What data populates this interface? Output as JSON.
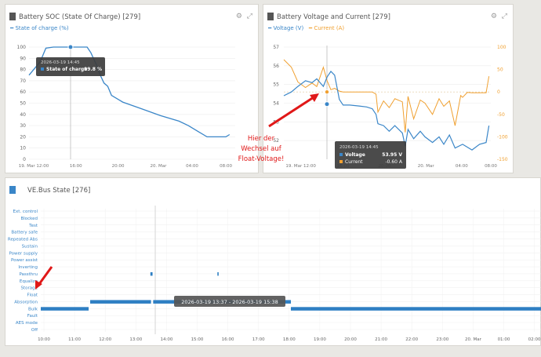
{
  "soc_panel": {
    "title": "Battery SOC (State Of Charge) [279]",
    "legend": "State of charge (%)",
    "tooltip": {
      "time": "2026-03-19 14:45",
      "label": "State of charge",
      "value": "99.8 %"
    }
  },
  "vc_panel": {
    "title": "Battery Voltage and Current [279]",
    "legend_voltage": "Voltage (V)",
    "legend_current": "Current (A)",
    "tooltip": {
      "time": "2026-03-19 14:45",
      "voltage_label": "Voltage",
      "voltage_value": "53.95 V",
      "current_label": "Current",
      "current_value": "-0.60 A"
    },
    "annotation": [
      "Hier der",
      "Wechsel auf",
      "Float-Voltage!"
    ]
  },
  "vebus_panel": {
    "title": "VE.Bus State [276]",
    "tooltip": "2026-03-19 13:37 - 2026-03-19 15:38"
  },
  "colors": {
    "blue": "#3a86c8",
    "orange": "#f0a030",
    "red": "#e01818",
    "bar": "#2e7fc3"
  },
  "chart_data": [
    {
      "type": "line",
      "title": "Battery SOC (State Of Charge) [279]",
      "series": [
        {
          "name": "State of charge (%)",
          "values": [
            [
              0,
              75
            ],
            [
              1.2,
              87
            ],
            [
              1.8,
              99
            ],
            [
              2.6,
              100
            ],
            [
              6.2,
              100
            ],
            [
              6.6,
              95
            ],
            [
              7.2,
              84
            ],
            [
              7.6,
              75
            ],
            [
              8.0,
              68
            ],
            [
              8.4,
              65
            ],
            [
              8.8,
              57
            ],
            [
              10,
              51
            ],
            [
              12,
              45
            ],
            [
              14,
              39
            ],
            [
              16,
              34
            ],
            [
              17,
              30
            ],
            [
              18,
              25
            ],
            [
              19,
              20
            ],
            [
              20,
              20
            ],
            [
              21,
              20
            ],
            [
              21.4,
              22
            ]
          ]
        }
      ],
      "x_tick_labels": [
        "19. Mar 12:00",
        "16:00",
        "20:00",
        "20. Mar",
        "04:00",
        "08:00"
      ],
      "y_tick_labels": [
        "0",
        "10",
        "20",
        "30",
        "40",
        "50",
        "60",
        "70",
        "80",
        "90",
        "100"
      ],
      "ylim": [
        0,
        100
      ]
    },
    {
      "type": "line",
      "title": "Battery Voltage and Current [279]",
      "series": [
        {
          "name": "Voltage (V)",
          "axis": "left",
          "values": [
            [
              0,
              54.4
            ],
            [
              0.8,
              54.6
            ],
            [
              1.5,
              54.9
            ],
            [
              2.3,
              55.2
            ],
            [
              3.0,
              55.1
            ],
            [
              3.5,
              55.3
            ],
            [
              4.2,
              54.9
            ],
            [
              4.6,
              55.4
            ],
            [
              5.0,
              55.7
            ],
            [
              5.4,
              55.5
            ],
            [
              5.9,
              54.2
            ],
            [
              6.3,
              53.9
            ],
            [
              7,
              53.9
            ],
            [
              8,
              53.85
            ],
            [
              8.8,
              53.8
            ],
            [
              9.4,
              53.7
            ],
            [
              9.8,
              53.4
            ],
            [
              10.0,
              52.9
            ],
            [
              10.6,
              52.8
            ],
            [
              11.2,
              52.5
            ],
            [
              11.8,
              52.8
            ],
            [
              12.6,
              52.4
            ],
            [
              12.9,
              51.7
            ],
            [
              13.2,
              52.6
            ],
            [
              13.8,
              52.1
            ],
            [
              14.5,
              52.5
            ],
            [
              15.0,
              52.2
            ],
            [
              15.8,
              51.9
            ],
            [
              16.5,
              52.2
            ],
            [
              17.0,
              51.8
            ],
            [
              17.6,
              52.3
            ],
            [
              18.2,
              51.6
            ],
            [
              19.0,
              51.8
            ],
            [
              20.0,
              51.5
            ],
            [
              20.8,
              51.8
            ],
            [
              21.5,
              51.9
            ],
            [
              21.8,
              52.8
            ]
          ]
        },
        {
          "name": "Current (A)",
          "axis": "right",
          "values": [
            [
              0,
              72
            ],
            [
              0.8,
              55
            ],
            [
              1.5,
              22
            ],
            [
              2.3,
              10
            ],
            [
              3.0,
              20
            ],
            [
              3.5,
              12
            ],
            [
              4.2,
              55
            ],
            [
              4.6,
              25
            ],
            [
              5.0,
              5
            ],
            [
              5.4,
              8
            ],
            [
              5.9,
              2
            ],
            [
              6.3,
              0
            ],
            [
              9.4,
              0
            ],
            [
              9.8,
              -5
            ],
            [
              10.0,
              -45
            ],
            [
              10.6,
              -20
            ],
            [
              11.2,
              -35
            ],
            [
              11.8,
              -15
            ],
            [
              12.6,
              -22
            ],
            [
              12.9,
              -90
            ],
            [
              13.2,
              -10
            ],
            [
              13.8,
              -60
            ],
            [
              14.5,
              -18
            ],
            [
              15.0,
              -25
            ],
            [
              15.8,
              -50
            ],
            [
              16.5,
              -15
            ],
            [
              17.0,
              -32
            ],
            [
              17.6,
              -20
            ],
            [
              18.2,
              -75
            ],
            [
              18.8,
              -8
            ],
            [
              19.0,
              -12
            ],
            [
              19.5,
              -1
            ],
            [
              20.0,
              -2
            ],
            [
              21.5,
              -2
            ],
            [
              21.8,
              35
            ]
          ]
        }
      ],
      "x_tick_labels": [
        "19. Mar 12:00",
        "16:00",
        "20:00",
        "20. Mar",
        "04:00",
        "08:00"
      ],
      "y_left_tick_labels": [
        "52",
        "53",
        "54",
        "55",
        "56",
        "57"
      ],
      "y_right_tick_labels": [
        "-150",
        "-100",
        "-50",
        "0",
        "50",
        "100"
      ],
      "ylim_left": [
        51,
        57
      ],
      "ylim_right": [
        -150,
        100
      ]
    },
    {
      "type": "bar",
      "title": "VE.Bus State [276]",
      "categories": [
        "Ext. control",
        "Blocked",
        "Test",
        "Battery safe",
        "Repeated Abs",
        "Sustain",
        "Power supply",
        "Power assist",
        "Inverting",
        "Passthru",
        "Equalize",
        "Storage",
        "Float",
        "Absorption",
        "Bulk",
        "Fault",
        "AES mode",
        "Off"
      ],
      "x_tick_labels": [
        "10:00",
        "11:00",
        "12:00",
        "13:00",
        "14:00",
        "15:00",
        "16:00",
        "17:00",
        "18:00",
        "19:00",
        "20:00",
        "21:00",
        "22:00",
        "23:00",
        "20. Mar",
        "01:00",
        "02:00"
      ],
      "segments": [
        {
          "state": "Bulk",
          "start": 10.0,
          "end": 11.55
        },
        {
          "state": "Absorption",
          "start": 11.6,
          "end": 13.57
        },
        {
          "state": "Absorption",
          "start": 13.64,
          "end": 18.1
        },
        {
          "state": "Bulk",
          "start": 18.1,
          "end": 26.2
        },
        {
          "state": "Passthru",
          "start": 13.55,
          "end": 13.62
        },
        {
          "state": "Passthru",
          "start": 15.72,
          "end": 15.76
        }
      ]
    }
  ]
}
